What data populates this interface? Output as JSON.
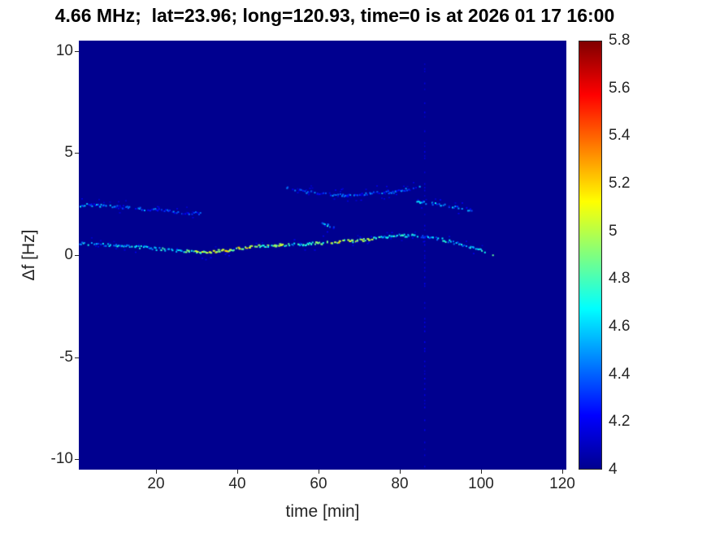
{
  "chart_data": {
    "type": "heatmap",
    "title": "4.66 MHz;  lat=23.96; long=120.93, time=0 is at 2026 01 17 16:00",
    "xlabel": "time [min]",
    "ylabel": "Δf [Hz]",
    "xlim": [
      1,
      121
    ],
    "ylim": [
      -10.5,
      10.5
    ],
    "xticks": [
      "20",
      "40",
      "60",
      "80",
      "100",
      "120"
    ],
    "xtick_values": [
      20,
      40,
      60,
      80,
      100,
      120
    ],
    "yticks": [
      "-10",
      "-5",
      "0",
      "5",
      "10"
    ],
    "ytick_values": [
      -10,
      -5,
      0,
      5,
      10
    ],
    "grid": false,
    "background_value": 4,
    "colorbar": {
      "min": 4,
      "max": 5.8,
      "tick_labels": [
        "4",
        "4.2",
        "4.4",
        "4.6",
        "4.8",
        "5",
        "5.2",
        "5.4",
        "5.6",
        "5.8"
      ],
      "tick_values": [
        4,
        4.2,
        4.4,
        4.6,
        4.8,
        5,
        5.2,
        5.4,
        5.6,
        5.8
      ],
      "colormap_name": "jet",
      "colormap_stops": [
        {
          "pos": 0.0,
          "color": "#00008F"
        },
        {
          "pos": 0.125,
          "color": "#0000FF"
        },
        {
          "pos": 0.375,
          "color": "#00FFFF"
        },
        {
          "pos": 0.625,
          "color": "#FFFF00"
        },
        {
          "pos": 0.875,
          "color": "#FF0000"
        },
        {
          "pos": 1.0,
          "color": "#800000"
        }
      ]
    },
    "series": [
      {
        "name": "main-doppler-trace",
        "points": [
          [
            1,
            0.62,
            4.6
          ],
          [
            5,
            0.55,
            4.55
          ],
          [
            10,
            0.5,
            4.5
          ],
          [
            15,
            0.45,
            4.6
          ],
          [
            20,
            0.35,
            4.55
          ],
          [
            25,
            0.25,
            4.65
          ],
          [
            30,
            0.2,
            4.85
          ],
          [
            33,
            0.18,
            5.0
          ],
          [
            36,
            0.25,
            4.95
          ],
          [
            40,
            0.35,
            5.05
          ],
          [
            43,
            0.42,
            4.9
          ],
          [
            46,
            0.5,
            4.75
          ],
          [
            50,
            0.52,
            4.85
          ],
          [
            55,
            0.55,
            4.65
          ],
          [
            58,
            0.6,
            4.75
          ],
          [
            62,
            0.65,
            4.9
          ],
          [
            65,
            0.7,
            5.0
          ],
          [
            68,
            0.72,
            4.95
          ],
          [
            71,
            0.78,
            4.85
          ],
          [
            74,
            0.85,
            4.75
          ],
          [
            77,
            0.95,
            4.65
          ],
          [
            80,
            1.0,
            4.6
          ],
          [
            83,
            1.0,
            4.55
          ],
          [
            86,
            0.95,
            4.5
          ],
          [
            89,
            0.85,
            4.5
          ],
          [
            92,
            0.7,
            4.6
          ],
          [
            95,
            0.55,
            4.5
          ],
          [
            98,
            0.4,
            4.6
          ],
          [
            101,
            0.2,
            4.8
          ],
          [
            103,
            0.05,
            4.9
          ]
        ]
      },
      {
        "name": "upper-trace-early",
        "points": [
          [
            1,
            2.45,
            4.45
          ],
          [
            4,
            2.5,
            4.4
          ],
          [
            7,
            2.45,
            4.42
          ],
          [
            10,
            2.4,
            4.35
          ],
          [
            13,
            2.35,
            4.32
          ],
          [
            16,
            2.3,
            4.35
          ],
          [
            19,
            2.25,
            4.3
          ],
          [
            22,
            2.2,
            4.3
          ],
          [
            25,
            2.15,
            4.3
          ],
          [
            28,
            2.1,
            4.25
          ],
          [
            31,
            2.05,
            4.22
          ]
        ]
      },
      {
        "name": "upper-trace-mid",
        "points": [
          [
            52,
            3.35,
            4.28
          ],
          [
            55,
            3.2,
            4.32
          ],
          [
            58,
            3.1,
            4.3
          ],
          [
            61,
            3.05,
            4.3
          ],
          [
            64,
            3.0,
            4.35
          ],
          [
            67,
            2.95,
            4.3
          ],
          [
            70,
            3.0,
            4.3
          ],
          [
            73,
            3.05,
            4.35
          ],
          [
            76,
            3.1,
            4.3
          ],
          [
            79,
            3.15,
            4.35
          ],
          [
            82,
            3.25,
            4.3
          ],
          [
            85,
            3.35,
            4.35
          ]
        ]
      },
      {
        "name": "upper-trace-late",
        "points": [
          [
            84,
            2.7,
            4.42
          ],
          [
            86,
            2.6,
            4.48
          ],
          [
            88,
            2.55,
            4.5
          ],
          [
            90,
            2.5,
            4.45
          ],
          [
            92,
            2.45,
            4.42
          ],
          [
            94,
            2.4,
            4.45
          ],
          [
            96,
            2.3,
            4.4
          ],
          [
            98,
            2.2,
            4.35
          ]
        ]
      },
      {
        "name": "isolated-blob",
        "points": [
          [
            60.5,
            1.55,
            4.5
          ],
          [
            62,
            1.5,
            4.55
          ],
          [
            63.5,
            1.45,
            4.5
          ]
        ]
      }
    ],
    "vertical_interference_line": {
      "time": 86,
      "value": 4.15
    }
  }
}
